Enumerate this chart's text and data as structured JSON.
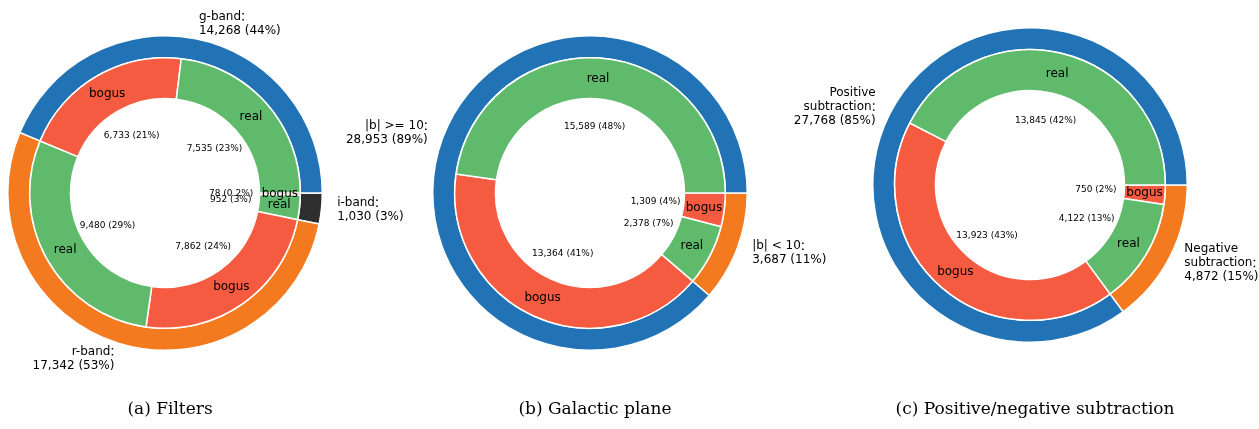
{
  "chart_data": [
    {
      "type": "donut",
      "title": "(a) Filters",
      "categories": [
        "i-band",
        "r-band",
        "g-band"
      ],
      "values": [
        1030,
        17342,
        14268
      ],
      "colors": [
        "#2e2e2e",
        "#f47a1f",
        "#2173b5"
      ],
      "value_labels": [
        "1,030 (3%)",
        "17,342 (53%)",
        "14,268 (44%)"
      ]
    },
    {
      "type": "donut",
      "categories": [
        "bogus",
        "real",
        "bogus",
        "real",
        "bogus",
        "real"
      ],
      "values": [
        78,
        952,
        7862,
        9480,
        6733,
        7535
      ],
      "colors": [
        "#f55b41",
        "#5fba6c",
        "#f55b41",
        "#5fba6c",
        "#f55b41",
        "#5fba6c"
      ],
      "value_labels": [
        "78 (0.2%)",
        "952 (3%)",
        "7,862 (24%)",
        "9,480 (29%)",
        "6,733 (21%)",
        "7,535 (23%)"
      ]
    },
    {
      "type": "donut",
      "title": "(b) Galactic plane",
      "categories": [
        "|b| < 10",
        "|b| >= 10"
      ],
      "values": [
        3687,
        28953
      ],
      "colors": [
        "#f47a1f",
        "#2173b5"
      ],
      "value_labels": [
        "3,687 (11%)",
        "28,953 (89%)"
      ]
    },
    {
      "type": "donut",
      "categories": [
        "bogus",
        "real",
        "bogus",
        "real"
      ],
      "values": [
        1309,
        2378,
        13364,
        15589
      ],
      "colors": [
        "#f55b41",
        "#5fba6c",
        "#f55b41",
        "#5fba6c"
      ],
      "value_labels": [
        "1,309 (4%)",
        "2,378 (7%)",
        "13,364 (41%)",
        "15,589 (48%)"
      ]
    },
    {
      "type": "donut",
      "title": "(c) Positive/negative subtraction",
      "categories": [
        "Negative subtraction",
        "Positive subtraction"
      ],
      "values": [
        4872,
        27768
      ],
      "colors": [
        "#f47a1f",
        "#2173b5"
      ],
      "value_labels": [
        "4,872 (15%)",
        "27,768 (85%)"
      ]
    },
    {
      "type": "donut",
      "categories": [
        "bogus",
        "real",
        "bogus",
        "real"
      ],
      "values": [
        750,
        4122,
        13923,
        13845
      ],
      "colors": [
        "#f55b41",
        "#5fba6c",
        "#f55b41",
        "#5fba6c"
      ],
      "value_labels": [
        "750 (2%)",
        "4,122 (13%)",
        "13,923 (43%)",
        "13,845 (42%)"
      ]
    }
  ]
}
